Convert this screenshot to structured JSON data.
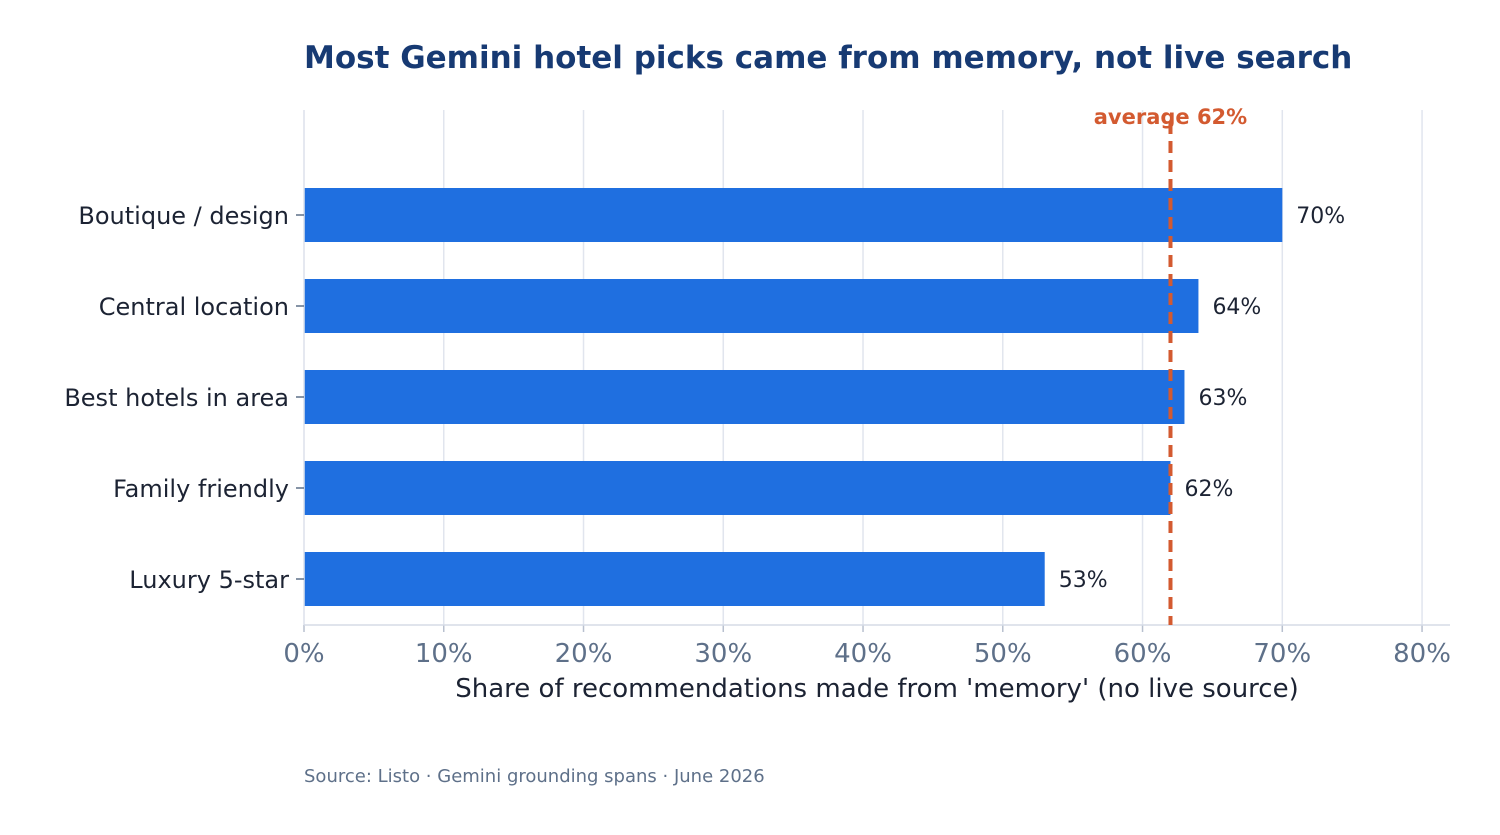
{
  "chart_data": {
    "type": "bar",
    "orientation": "horizontal",
    "title": "Most Gemini hotel picks came from memory, not live search",
    "xlabel": "Share of recommendations made from 'memory' (no live source)",
    "ylabel": "",
    "categories": [
      "Boutique / design",
      "Central location",
      "Best hotels in area",
      "Family friendly",
      "Luxury 5-star"
    ],
    "values": [
      70,
      64,
      63,
      62,
      53
    ],
    "value_labels": [
      "70%",
      "64%",
      "63%",
      "62%",
      "53%"
    ],
    "xlim": [
      0,
      82
    ],
    "x_ticks": [
      0,
      10,
      20,
      30,
      40,
      50,
      60,
      70,
      80
    ],
    "x_tick_labels": [
      "0%",
      "10%",
      "20%",
      "30%",
      "40%",
      "50%",
      "60%",
      "70%",
      "80%"
    ],
    "grid": "vertical",
    "reference_line": {
      "value": 62,
      "label": "average 62%",
      "style": "dashed"
    },
    "colors": {
      "bar": "#1f6fe0",
      "reference": "#d35a30",
      "title": "#173a73",
      "grid": "#e1e5ee"
    },
    "source": "Source: Listo · Gemini grounding spans · June 2026"
  }
}
